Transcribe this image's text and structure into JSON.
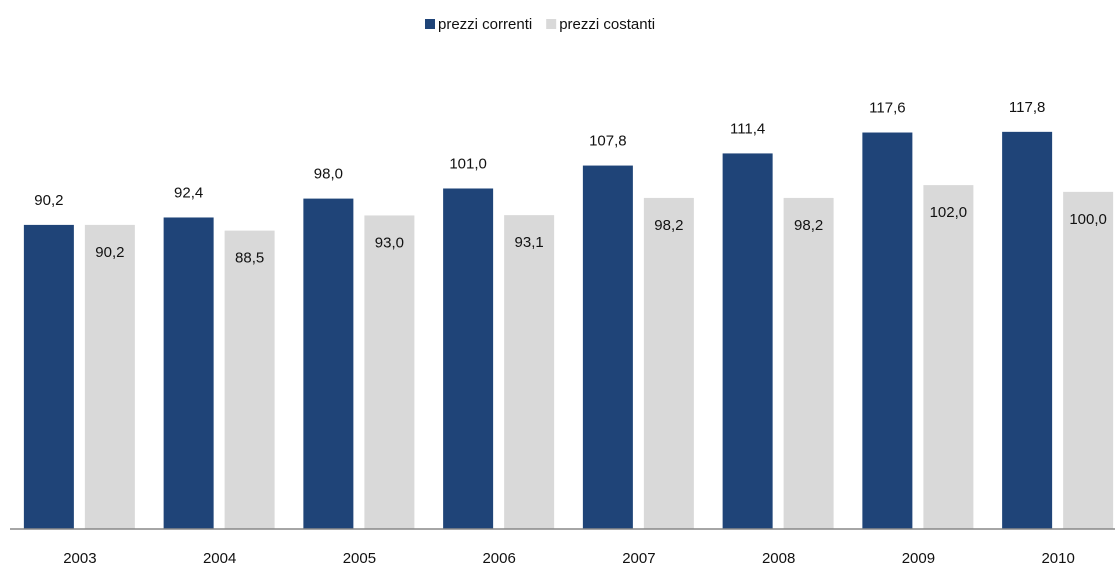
{
  "chart_data": {
    "type": "bar",
    "categories": [
      "2003",
      "2004",
      "2005",
      "2006",
      "2007",
      "2008",
      "2009",
      "2010"
    ],
    "series": [
      {
        "name": "prezzi correnti",
        "color": "#1f4478",
        "values": [
          90.2,
          92.4,
          98.0,
          101.0,
          107.8,
          111.4,
          117.6,
          117.8
        ],
        "value_labels": [
          "90,2",
          "92,4",
          "98,0",
          "101,0",
          "107,8",
          "111,4",
          "117,6",
          "117,8"
        ]
      },
      {
        "name": "prezzi costanti",
        "color": "#d9d9d9",
        "values": [
          90.2,
          88.5,
          93.0,
          93.1,
          98.2,
          98.2,
          102.0,
          100.0
        ],
        "value_labels": [
          "90,2",
          "88,5",
          "93,0",
          "93,1",
          "98,2",
          "98,2",
          "102,0",
          "100,0"
        ]
      }
    ],
    "ylim": [
      0,
      140
    ],
    "legend": "top"
  }
}
